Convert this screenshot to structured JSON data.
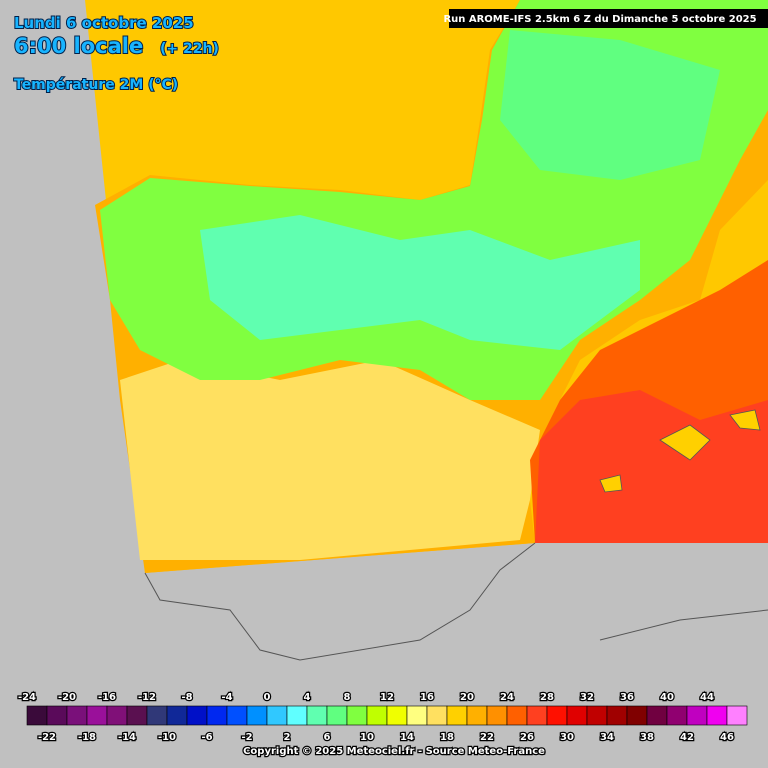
{
  "header": {
    "date": "Lundi 6 octobre 2025",
    "time": "6:00 locale",
    "offset": "(+ 22h)",
    "parameter": "Température 2M (°C)",
    "run": "Run AROME-IFS 2.5km 6 Z du Dimanche 5 octobre 2025"
  },
  "footer": {
    "copyright": "Copyright © 2025 Meteociel.fr - Source Meteo-France"
  },
  "legend": {
    "values": [
      -24,
      -22,
      -20,
      -18,
      -16,
      -14,
      -12,
      -10,
      -8,
      -6,
      -4,
      -2,
      0,
      2,
      4,
      6,
      8,
      10,
      12,
      14,
      16,
      18,
      20,
      22,
      24,
      26,
      28,
      30,
      32,
      34,
      36,
      38,
      40,
      42,
      44,
      46
    ],
    "colors": [
      "#3a0a3a",
      "#5a0a5a",
      "#7a107a",
      "#9a109a",
      "#801078",
      "#5a1050",
      "#303878",
      "#102898",
      "#0010c8",
      "#0028f0",
      "#0050ff",
      "#0090ff",
      "#30c8ff",
      "#60ffff",
      "#60ffb0",
      "#60ff80",
      "#80ff40",
      "#c0ff00",
      "#f0ff00",
      "#ffff80",
      "#ffe060",
      "#ffd000",
      "#ffb000",
      "#ff9000",
      "#ff6000",
      "#ff4020",
      "#ff1000",
      "#e00000",
      "#c00000",
      "#a00000",
      "#800000",
      "#700040",
      "#900070",
      "#c000c0",
      "#f000f0",
      "#ff80ff"
    ]
  }
}
